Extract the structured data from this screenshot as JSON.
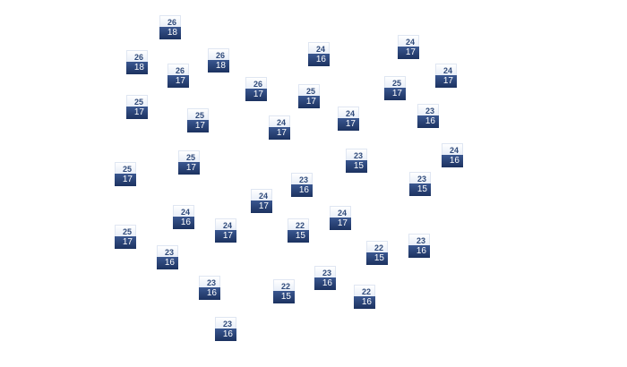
{
  "markers": [
    {
      "high": "26",
      "low": "18"
    },
    {
      "high": "26",
      "low": "18"
    },
    {
      "high": "26",
      "low": "17"
    },
    {
      "high": "26",
      "low": "18"
    },
    {
      "high": "26",
      "low": "17"
    },
    {
      "high": "24",
      "low": "16"
    },
    {
      "high": "24",
      "low": "17"
    },
    {
      "high": "24",
      "low": "17"
    },
    {
      "high": "25",
      "low": "17"
    },
    {
      "high": "25",
      "low": "17"
    },
    {
      "high": "25",
      "low": "17"
    },
    {
      "high": "25",
      "low": "17"
    },
    {
      "high": "24",
      "low": "17"
    },
    {
      "high": "24",
      "low": "17"
    },
    {
      "high": "23",
      "low": "16"
    },
    {
      "high": "25",
      "low": "17"
    },
    {
      "high": "25",
      "low": "17"
    },
    {
      "high": "23",
      "low": "15"
    },
    {
      "high": "24",
      "low": "16"
    },
    {
      "high": "23",
      "low": "16"
    },
    {
      "high": "23",
      "low": "15"
    },
    {
      "high": "24",
      "low": "17"
    },
    {
      "high": "24",
      "low": "16"
    },
    {
      "high": "24",
      "low": "17"
    },
    {
      "high": "22",
      "low": "15"
    },
    {
      "high": "24",
      "low": "17"
    },
    {
      "high": "25",
      "low": "17"
    },
    {
      "high": "23",
      "low": "16"
    },
    {
      "high": "22",
      "low": "15"
    },
    {
      "high": "23",
      "low": "16"
    },
    {
      "high": "23",
      "low": "16"
    },
    {
      "high": "22",
      "low": "15"
    },
    {
      "high": "23",
      "low": "16"
    },
    {
      "high": "22",
      "low": "16"
    },
    {
      "high": "23",
      "low": "16"
    }
  ],
  "colors": {
    "high_text": "#2f4a7a",
    "low_bg": "#1c3260"
  }
}
